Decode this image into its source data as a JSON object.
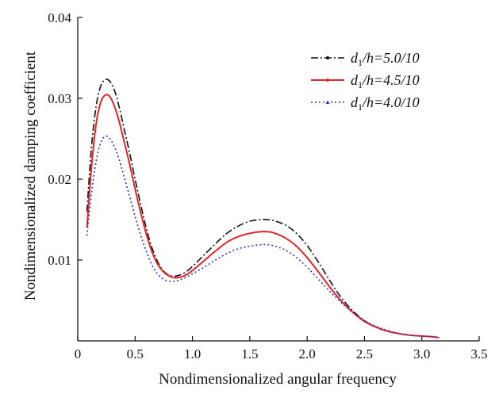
{
  "chart_data": {
    "type": "line",
    "title": "",
    "xlabel": "Nondimensionalized angular frequency",
    "ylabel": "Nondimensionalized damping coefficient",
    "xlim": [
      0,
      3.5
    ],
    "ylim": [
      0,
      0.04
    ],
    "xticks": [
      "0",
      "0.5",
      "1.0",
      "1.5",
      "2.0",
      "2.5",
      "3.0",
      "3.5"
    ],
    "yticks": [
      "0.01",
      "0.02",
      "0.03",
      "0.04"
    ],
    "xtick_values": [
      0,
      0.5,
      1.0,
      1.5,
      2.0,
      2.5,
      3.0,
      3.5
    ],
    "ytick_values": [
      0.01,
      0.02,
      0.03,
      0.04
    ],
    "legend_position": "top-right",
    "grid": false,
    "x": [
      0.08,
      0.12,
      0.16,
      0.2,
      0.24,
      0.28,
      0.32,
      0.36,
      0.4,
      0.45,
      0.5,
      0.55,
      0.6,
      0.65,
      0.7,
      0.75,
      0.8,
      0.85,
      0.9,
      0.95,
      1.0,
      1.1,
      1.2,
      1.3,
      1.4,
      1.5,
      1.6,
      1.65,
      1.7,
      1.8,
      1.9,
      2.0,
      2.1,
      2.2,
      2.3,
      2.4,
      2.5,
      2.6,
      2.7,
      2.8,
      2.9,
      3.0,
      3.1,
      3.15
    ],
    "series": [
      {
        "name": "d1/h=5.0/10",
        "label_base": "d",
        "label_sub": "1",
        "label_rest": "/h=5.0/10",
        "color": "#111111",
        "dash": "9 3 2 3",
        "marker": "circle",
        "values": [
          0.016,
          0.024,
          0.029,
          0.0315,
          0.0323,
          0.0321,
          0.031,
          0.029,
          0.0265,
          0.0234,
          0.02,
          0.0168,
          0.0138,
          0.0114,
          0.0097,
          0.0086,
          0.0081,
          0.008,
          0.0082,
          0.0086,
          0.0092,
          0.0106,
          0.012,
          0.0133,
          0.0142,
          0.0148,
          0.015,
          0.015,
          0.0149,
          0.0144,
          0.0134,
          0.0118,
          0.0097,
          0.0074,
          0.0053,
          0.0037,
          0.0025,
          0.0017,
          0.0012,
          0.0009,
          0.0007,
          0.0006,
          0.0005,
          0.0004
        ]
      },
      {
        "name": "d1/h=4.5/10",
        "label_base": "d",
        "label_sub": "1",
        "label_rest": "/h=4.5/10",
        "color": "#e0242c",
        "dash": "",
        "marker": "circle",
        "values": [
          0.014,
          0.0215,
          0.0268,
          0.0295,
          0.0304,
          0.0302,
          0.029,
          0.0272,
          0.0249,
          0.022,
          0.0188,
          0.0158,
          0.0131,
          0.0109,
          0.0094,
          0.0085,
          0.008,
          0.0078,
          0.0079,
          0.0082,
          0.0087,
          0.0099,
          0.0111,
          0.0122,
          0.0129,
          0.0133,
          0.0135,
          0.0135,
          0.0134,
          0.0128,
          0.0118,
          0.0103,
          0.0085,
          0.0066,
          0.0049,
          0.0035,
          0.0024,
          0.0017,
          0.0012,
          0.0009,
          0.0007,
          0.0006,
          0.0005,
          0.0004
        ]
      },
      {
        "name": "d1/h=4.0/10",
        "label_base": "d",
        "label_sub": "1",
        "label_rest": "/h=4.0/10",
        "color": "#3333cc",
        "dash": "2 3",
        "marker": "triangle",
        "values": [
          0.013,
          0.0182,
          0.0222,
          0.0245,
          0.0253,
          0.025,
          0.024,
          0.0225,
          0.0205,
          0.018,
          0.0154,
          0.013,
          0.011,
          0.0093,
          0.0082,
          0.0076,
          0.0074,
          0.0074,
          0.0076,
          0.0079,
          0.0083,
          0.0091,
          0.01,
          0.0108,
          0.0114,
          0.0117,
          0.0119,
          0.0119,
          0.0118,
          0.0113,
          0.0104,
          0.0091,
          0.0076,
          0.0061,
          0.0047,
          0.0035,
          0.0025,
          0.0018,
          0.0013,
          0.0009,
          0.0007,
          0.0006,
          0.0005,
          0.0004
        ]
      }
    ]
  }
}
